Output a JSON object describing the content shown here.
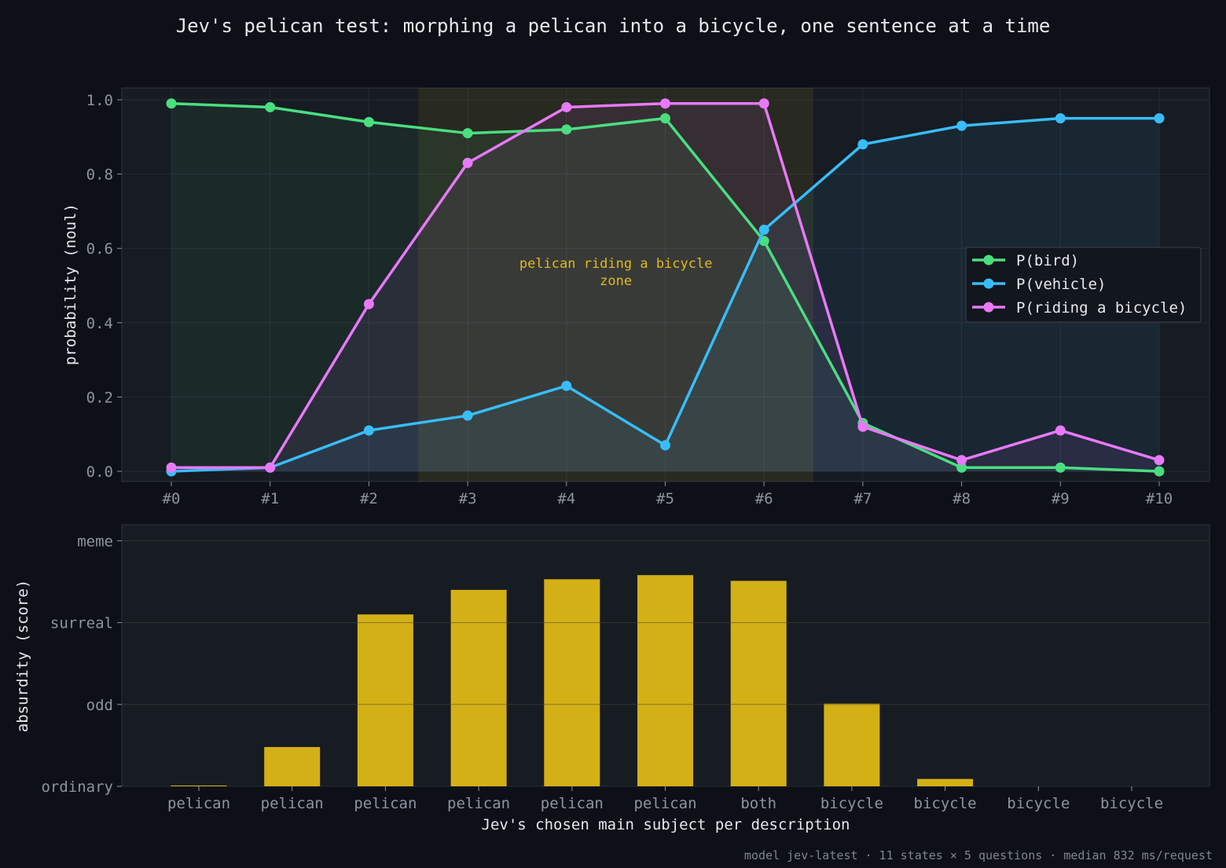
{
  "title": "Jev's pelican test: morphing a pelican into a bicycle, one sentence at a time",
  "footer": "model jev-latest · 11 states × 5 questions · median 832 ms/request",
  "colors": {
    "background": "#0d1017",
    "panel": "#171b22",
    "bird": "#4ade80",
    "vehicle": "#38bdf8",
    "riding": "#e879f9",
    "bar": "#d4b017",
    "zone": "#e3b81d"
  },
  "chart_data": [
    {
      "type": "line",
      "x": [
        "#0",
        "#1",
        "#2",
        "#3",
        "#4",
        "#5",
        "#6",
        "#7",
        "#8",
        "#9",
        "#10"
      ],
      "ylabel": "probability (noul)",
      "ylim": [
        0,
        1
      ],
      "yticks": [
        "0.0",
        "0.2",
        "0.4",
        "0.6",
        "0.8",
        "1.0"
      ],
      "series": [
        {
          "name": "P(bird)",
          "color": "#4ade80",
          "values": [
            0.99,
            0.98,
            0.94,
            0.91,
            0.92,
            0.95,
            0.62,
            0.13,
            0.01,
            0.01,
            0.0
          ]
        },
        {
          "name": "P(vehicle)",
          "color": "#38bdf8",
          "values": [
            0.0,
            0.01,
            0.11,
            0.15,
            0.23,
            0.07,
            0.65,
            0.88,
            0.93,
            0.95,
            0.95
          ]
        },
        {
          "name": "P(riding a bicycle)",
          "color": "#e879f9",
          "values": [
            0.01,
            0.01,
            0.45,
            0.83,
            0.98,
            0.99,
            0.99,
            0.12,
            0.03,
            0.11,
            0.03
          ]
        }
      ],
      "legend_position": "right",
      "grid": true,
      "annotation": {
        "text_lines": [
          "pelican riding a bicycle",
          "zone"
        ],
        "from_x": 2.5,
        "to_x": 6.5
      }
    },
    {
      "type": "bar",
      "categories": [
        "pelican",
        "pelican",
        "pelican",
        "pelican",
        "pelican",
        "pelican",
        "both",
        "bicycle",
        "bicycle",
        "bicycle",
        "bicycle"
      ],
      "values": [
        0.01,
        0.48,
        2.1,
        2.4,
        2.53,
        2.58,
        2.51,
        1.01,
        0.09,
        0,
        0
      ],
      "xlabel": "Jev's chosen main subject per description",
      "ylabel": "absurdity (score)",
      "ylim": [
        0,
        3
      ],
      "yticks": [
        "ordinary",
        "odd",
        "surreal",
        "meme"
      ],
      "grid": true
    }
  ]
}
